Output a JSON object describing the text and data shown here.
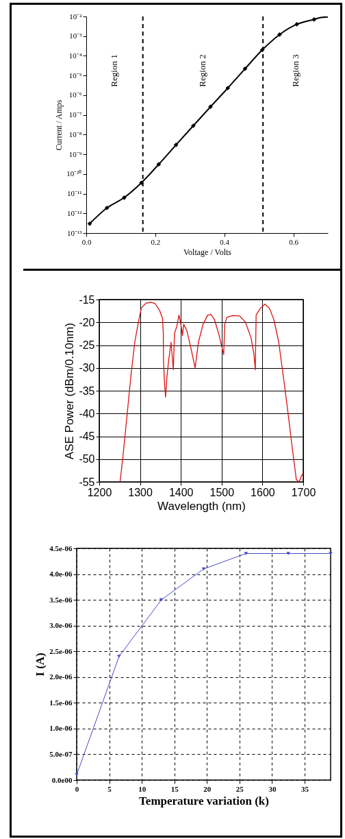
{
  "chart_data": [
    {
      "type": "line",
      "xlabel": "Voltage / Volts",
      "ylabel": "Current / Amps",
      "log": "y",
      "marker": "diamond",
      "line_style": "solid",
      "grid": false,
      "xlim": [
        0,
        0.7
      ],
      "xticks": [
        {
          "value": 0,
          "label": "0.0"
        },
        {
          "value": 0.2,
          "label": "0.2"
        },
        {
          "value": 0.4,
          "label": "0.4"
        },
        {
          "value": 0.6,
          "label": "0.6"
        }
      ],
      "ylim": [
        1e-13,
        0.01
      ],
      "yticks": [
        {
          "value": 1e-13,
          "label": "10⁻¹³"
        },
        {
          "value": 1e-12,
          "label": "10⁻¹²"
        },
        {
          "value": 1e-11,
          "label": "10⁻¹¹"
        },
        {
          "value": 1e-10,
          "label": "10⁻¹⁰"
        },
        {
          "value": 1e-09,
          "label": "10⁻⁹"
        },
        {
          "value": 1e-08,
          "label": "10⁻⁸"
        },
        {
          "value": 1e-07,
          "label": "10⁻⁷"
        },
        {
          "value": 1e-06,
          "label": "10⁻⁶"
        },
        {
          "value": 1e-05,
          "label": "10⁻⁵"
        },
        {
          "value": 0.0001,
          "label": "10⁻⁴"
        },
        {
          "value": 0.001,
          "label": "10⁻³"
        },
        {
          "value": 0.01,
          "label": "10⁻²"
        }
      ],
      "series": [
        {
          "color": "#000000",
          "x": [
            0.01,
            0.06,
            0.11,
            0.16,
            0.21,
            0.26,
            0.31,
            0.36,
            0.41,
            0.46,
            0.51,
            0.56,
            0.61,
            0.66
          ],
          "values": [
            3e-13,
            1.9e-12,
            6.3e-12,
            3.6e-11,
            3.1e-10,
            3e-09,
            2.8e-08,
            2.6e-07,
            2.3e-06,
            2.2e-05,
            0.0002,
            0.0012,
            0.004,
            0.007
          ]
        },
        {
          "color": "#000000",
          "marker": "none",
          "x": [
            0.66,
            0.68,
            0.7
          ],
          "values": [
            0.007,
            0.0088,
            0.0095
          ]
        }
      ],
      "ref_lines": [
        {
          "axis": "x",
          "value": 0.164,
          "line_style": "dashed",
          "color": "#000000"
        },
        {
          "axis": "x",
          "value": 0.512,
          "line_style": "dashed",
          "color": "#000000"
        }
      ],
      "annotations": [
        "Region 1",
        "Region 2",
        "Region 3"
      ]
    },
    {
      "type": "line",
      "xlabel": "Wavelength (nm)",
      "ylabel": "ASE Power  (dBm/0.10nm)",
      "grid": true,
      "marker": "none",
      "line_style": "solid",
      "xlim": [
        1200,
        1700
      ],
      "xticks": [
        1200,
        1300,
        1400,
        1500,
        1600,
        1700
      ],
      "ylim": [
        -55,
        -15
      ],
      "yticks": [
        -55,
        -50,
        -45,
        -40,
        -35,
        -30,
        -25,
        -20,
        -15
      ],
      "series": [
        {
          "color": "#dd1111",
          "x": [
            1251,
            1258,
            1267,
            1278,
            1287,
            1295,
            1303,
            1314,
            1326,
            1337,
            1348,
            1355,
            1357,
            1357.5,
            1360,
            1362.5,
            1366,
            1370,
            1376,
            1381.5,
            1384.5,
            1390,
            1395.5,
            1401,
            1404,
            1407,
            1415,
            1424,
            1435,
            1443,
            1454.5,
            1466,
            1474,
            1482.5,
            1494,
            1502,
            1505,
            1507.5,
            1513,
            1527,
            1544,
            1558,
            1572,
            1579,
            1582.5,
            1584.5,
            1595,
            1606,
            1617,
            1628,
            1640,
            1653.5,
            1662,
            1673,
            1683,
            1690,
            1695.5,
            1699
          ],
          "values": [
            -55,
            -49.5,
            -41.4,
            -31.4,
            -24.4,
            -20.4,
            -16.9,
            -15.8,
            -15.6,
            -15.9,
            -17.4,
            -19.1,
            -22.4,
            -28.4,
            -33.4,
            -36.4,
            -31.9,
            -28.4,
            -24.4,
            -30.4,
            -22.4,
            -20.9,
            -18.4,
            -20.9,
            -22.9,
            -20.4,
            -21.9,
            -25.4,
            -30,
            -24.4,
            -20.4,
            -18.4,
            -18.3,
            -19.4,
            -22.9,
            -26,
            -27.1,
            -20.4,
            -18.9,
            -18.5,
            -18.6,
            -19.9,
            -23.4,
            -26.9,
            -30.4,
            -18.4,
            -16.9,
            -16,
            -16.9,
            -19.4,
            -24.4,
            -33.4,
            -39.4,
            -47.5,
            -54.5,
            -55,
            -53.7,
            -53.2
          ]
        }
      ]
    },
    {
      "type": "line",
      "xlabel": "Temperature variation (k)",
      "ylabel": "I (A)",
      "grid": true,
      "marker": "triangle",
      "line_style": "solid",
      "xlim": [
        0,
        39
      ],
      "xticks": [
        0,
        5,
        10,
        15,
        20,
        25,
        30,
        35
      ],
      "ylim": [
        0,
        4.5e-06
      ],
      "yticks": [
        {
          "value": 0,
          "label": "0.0e00"
        },
        {
          "value": 5e-07,
          "label": "5.0e-07"
        },
        {
          "value": 1e-06,
          "label": "1.0e-06"
        },
        {
          "value": 1.5e-06,
          "label": "1.5e-06"
        },
        {
          "value": 2e-06,
          "label": "2.0e-06"
        },
        {
          "value": 2.5e-06,
          "label": "2.5e-06"
        },
        {
          "value": 3e-06,
          "label": "3.0e-06"
        },
        {
          "value": 3.5e-06,
          "label": "3.5e-06"
        },
        {
          "value": 4e-06,
          "label": "4.0e-06"
        },
        {
          "value": 4.5e-06,
          "label": "4.5e-06"
        }
      ],
      "series": [
        {
          "color": "#4a4ac8",
          "x": [
            0,
            6.5,
            13,
            19.5,
            26,
            32.5,
            39
          ],
          "values": [
            1e-07,
            2.4e-06,
            3.5e-06,
            4.1e-06,
            4.4e-06,
            4.4e-06,
            4.4e-06
          ]
        }
      ]
    }
  ]
}
